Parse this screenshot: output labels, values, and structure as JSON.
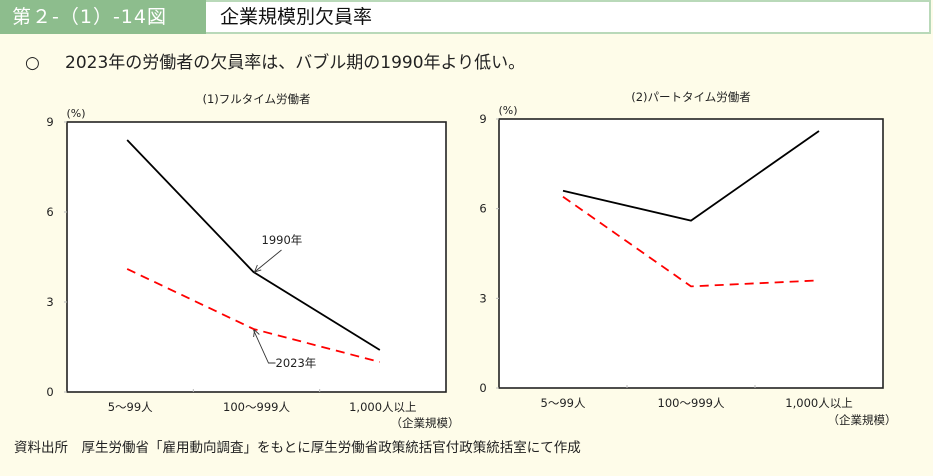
{
  "header": {
    "figure_number": "第２-（1）-14図",
    "title": "企業規模別欠員率"
  },
  "summary": {
    "bullet": "○",
    "text": "2023年の労働者の欠員率は、バブル期の1990年より低い。"
  },
  "source": "資料出所　厚生労働省「雇用動向調査」をもとに厚生労働省政策統括官付政策統括室にて作成",
  "colors": {
    "header_green": "#8dbd8d",
    "series_1990": "#000000",
    "series_2023": "#ff0000",
    "background": "#fefce9"
  },
  "chart_data": [
    {
      "type": "line",
      "title": "(1)フルタイム労働者",
      "ylabel": "(%)",
      "xlabel": "（企業規模）",
      "categories": [
        "5～99人",
        "100～999人",
        "1,000人以上"
      ],
      "ylim": [
        0,
        9
      ],
      "yticks": [
        0,
        3,
        6,
        9
      ],
      "grid": false,
      "series": [
        {
          "name": "1990年",
          "style": "solid",
          "color": "#000000",
          "values": [
            8.4,
            4.0,
            1.4
          ]
        },
        {
          "name": "2023年",
          "style": "dashed",
          "color": "#ff0000",
          "values": [
            4.1,
            2.1,
            1.0
          ]
        }
      ],
      "annotations": [
        {
          "text": "1990年",
          "series": "1990年",
          "category_index": 1
        },
        {
          "text": "2023年",
          "series": "2023年",
          "category_index": 1
        }
      ]
    },
    {
      "type": "line",
      "title": "(2)パートタイム労働者",
      "ylabel": "(%)",
      "xlabel": "（企業規模）",
      "categories": [
        "5～99人",
        "100～999人",
        "1,000人以上"
      ],
      "ylim": [
        0,
        9
      ],
      "yticks": [
        0,
        3,
        6,
        9
      ],
      "grid": false,
      "series": [
        {
          "name": "1990年",
          "style": "solid",
          "color": "#000000",
          "values": [
            6.6,
            5.6,
            8.6
          ]
        },
        {
          "name": "2023年",
          "style": "dashed",
          "color": "#ff0000",
          "values": [
            6.4,
            3.4,
            3.6
          ]
        }
      ],
      "annotations": []
    }
  ]
}
